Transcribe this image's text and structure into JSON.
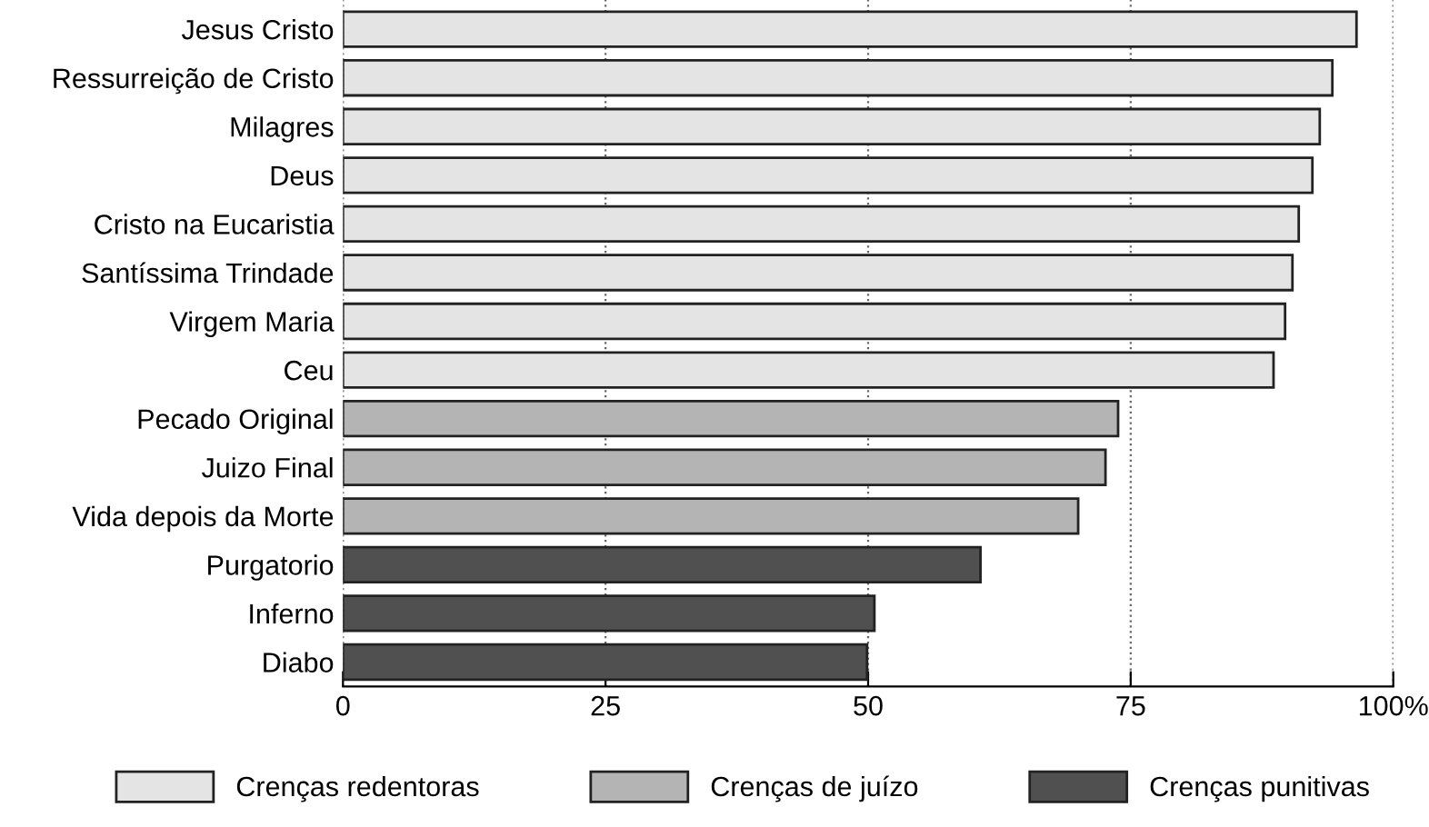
{
  "chart_data": {
    "type": "bar",
    "orientation": "horizontal",
    "categories": [
      "Jesus Cristo",
      "Ressurreição de Cristo",
      "Milagres",
      "Deus",
      "Cristo na Eucaristia",
      "Santíssima Trindade",
      "Virgem Maria",
      "Ceu",
      "Pecado Original",
      "Juizo Final",
      "Vida depois da Morte",
      "Purgatorio",
      "Inferno",
      "Diabo"
    ],
    "series": [
      {
        "name": "Crenças redentoras",
        "color": "#e4e4e4",
        "values": [
          96.5,
          94.2,
          93.0,
          92.3,
          91.0,
          90.4,
          89.7,
          88.6,
          null,
          null,
          null,
          null,
          null,
          null
        ]
      },
      {
        "name": "Crenças de juízo",
        "color": "#b4b4b4",
        "values": [
          null,
          null,
          null,
          null,
          null,
          null,
          null,
          null,
          73.8,
          72.6,
          70.0,
          null,
          null,
          null
        ]
      },
      {
        "name": "Crenças punitivas",
        "color": "#505050",
        "values": [
          null,
          null,
          null,
          null,
          null,
          null,
          null,
          null,
          null,
          null,
          null,
          60.7,
          50.6,
          49.9
        ]
      }
    ],
    "xlim": [
      0,
      100
    ],
    "xticks": [
      0,
      25,
      50,
      75,
      {
        "value": 100,
        "label": "100%"
      }
    ],
    "grid": "x",
    "legend": "bottom"
  }
}
